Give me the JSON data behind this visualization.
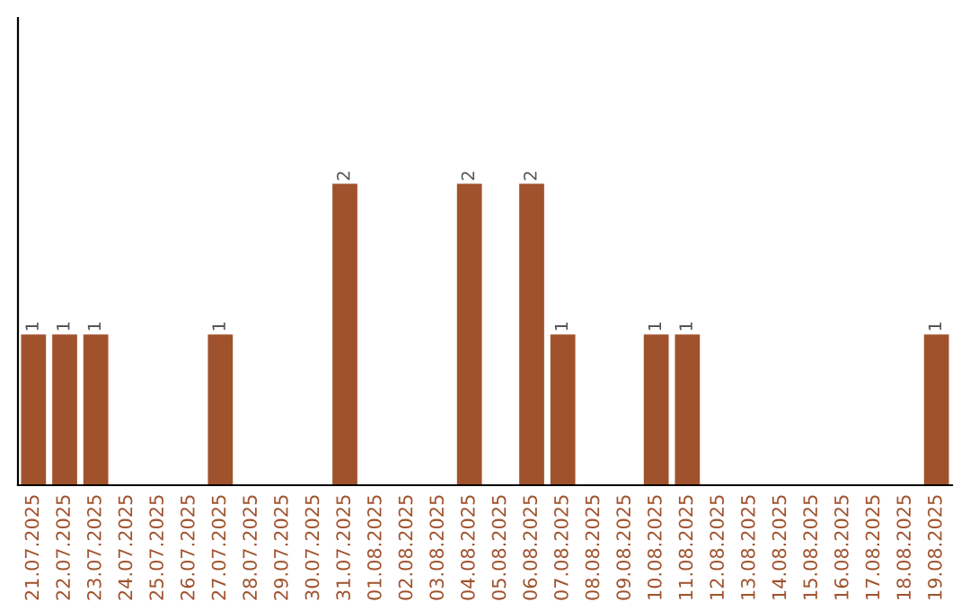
{
  "chart_data": {
    "type": "bar",
    "categories": [
      "21.07.2025",
      "22.07.2025",
      "23.07.2025",
      "24.07.2025",
      "25.07.2025",
      "26.07.2025",
      "27.07.2025",
      "28.07.2025",
      "29.07.2025",
      "30.07.2025",
      "31.07.2025",
      "01.08.2025",
      "02.08.2025",
      "03.08.2025",
      "04.08.2025",
      "05.08.2025",
      "06.08.2025",
      "07.08.2025",
      "08.08.2025",
      "09.08.2025",
      "10.08.2025",
      "11.08.2025",
      "12.08.2025",
      "13.08.2025",
      "14.08.2025",
      "15.08.2025",
      "16.08.2025",
      "17.08.2025",
      "18.08.2025",
      "19.08.2025"
    ],
    "values": [
      1,
      1,
      1,
      0,
      0,
      0,
      1,
      0,
      0,
      0,
      2,
      0,
      0,
      0,
      2,
      0,
      2,
      1,
      0,
      0,
      1,
      1,
      0,
      0,
      0,
      0,
      0,
      0,
      0,
      1
    ],
    "value_labels": [
      "1",
      "1",
      "1",
      null,
      null,
      null,
      "1",
      null,
      null,
      null,
      "2",
      null,
      null,
      null,
      "2",
      null,
      "2",
      "1",
      null,
      null,
      "1",
      "1",
      null,
      null,
      null,
      null,
      null,
      null,
      null,
      "1"
    ],
    "color": "#a0522d",
    "tick_labels": "x",
    "grid": false
  }
}
